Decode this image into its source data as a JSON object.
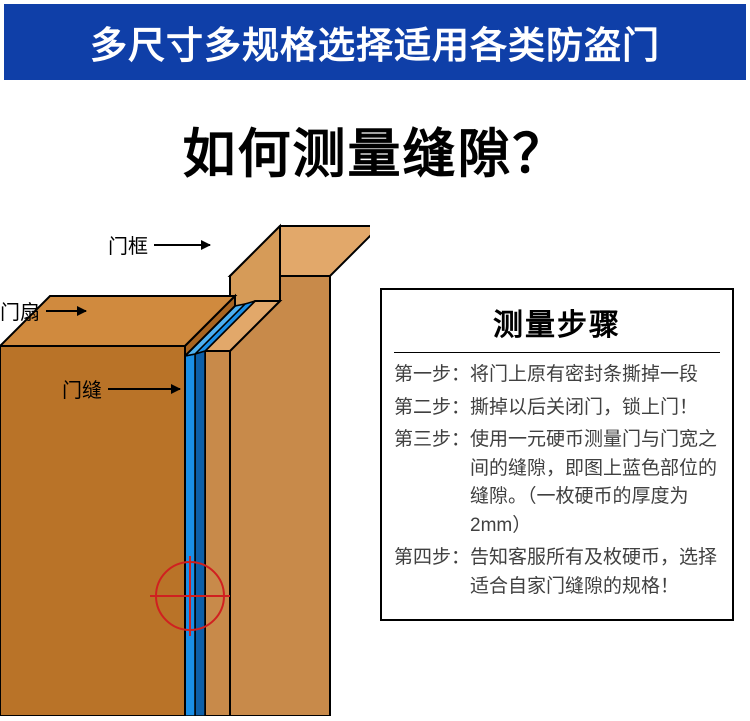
{
  "banner": {
    "text": "多尺寸多规格选择适用各类防盗门"
  },
  "question": "如何测量缝隙？",
  "diagram": {
    "labels": {
      "frame": "门框",
      "leaf": "门扇",
      "gap": "门缝"
    },
    "colors": {
      "frame_top": "#e2a86a",
      "frame_side": "#c88a4a",
      "leaf_top": "#d08a3e",
      "leaf_face": "#b97328",
      "leaf_side": "#a86420",
      "seal": "#1a8fe6",
      "seal_shadow": "#0d5fa8",
      "outline": "#000000",
      "crosshair": "#d02020"
    }
  },
  "steps": {
    "title": "测量步骤",
    "items": [
      {
        "label": "第一步：",
        "text": "将门上原有密封条撕掉一段"
      },
      {
        "label": "第二步：",
        "text": "撕掉以后关闭门，锁上门！"
      },
      {
        "label": "第三步：",
        "text": "使用一元硬币测量门与门宽之间的缝隙，即图上蓝色部位的缝隙。（一枚硬币的厚度为2mm）"
      },
      {
        "label": "第四步：",
        "text": "告知客服所有及枚硬币，选择适合自家门缝隙的规格！"
      }
    ]
  }
}
